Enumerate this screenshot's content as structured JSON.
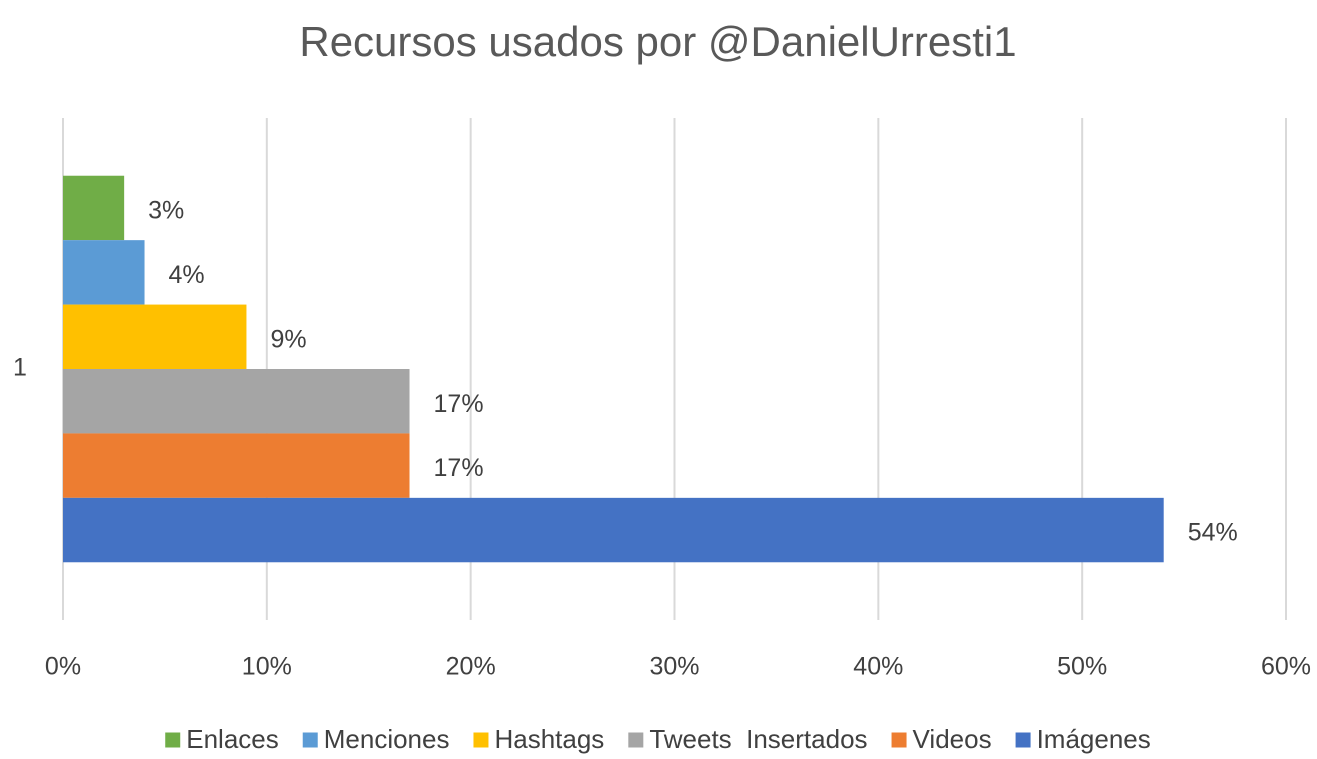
{
  "chart_data": {
    "type": "hbar",
    "title": "Recursos usados por @DanielUrresti1",
    "categories": [
      "1"
    ],
    "series": [
      {
        "name": "Enlaces",
        "color": "#70ad47",
        "values": [
          3
        ],
        "value_labels": [
          "3%"
        ]
      },
      {
        "name": "Menciones",
        "color": "#5b9bd5",
        "values": [
          4
        ],
        "value_labels": [
          "4%"
        ]
      },
      {
        "name": "Hashtags",
        "color": "#ffc000",
        "values": [
          9
        ],
        "value_labels": [
          "9%"
        ]
      },
      {
        "name": "Tweets  Insertados",
        "color": "#a5a5a5",
        "values": [
          17
        ],
        "value_labels": [
          "17%"
        ]
      },
      {
        "name": "Videos",
        "color": "#ed7d31",
        "values": [
          17
        ],
        "value_labels": [
          "17%"
        ]
      },
      {
        "name": "Imágenes",
        "color": "#4472c4",
        "values": [
          54
        ],
        "value_labels": [
          "54%"
        ]
      }
    ],
    "xlim": [
      0,
      60
    ],
    "xticks": [
      {
        "value": 0,
        "label": "0%"
      },
      {
        "value": 10,
        "label": "10%"
      },
      {
        "value": 20,
        "label": "20%"
      },
      {
        "value": 30,
        "label": "30%"
      },
      {
        "value": 40,
        "label": "40%"
      },
      {
        "value": 50,
        "label": "50%"
      },
      {
        "value": 60,
        "label": "60%"
      }
    ],
    "grid": true,
    "legend": "bottom"
  }
}
